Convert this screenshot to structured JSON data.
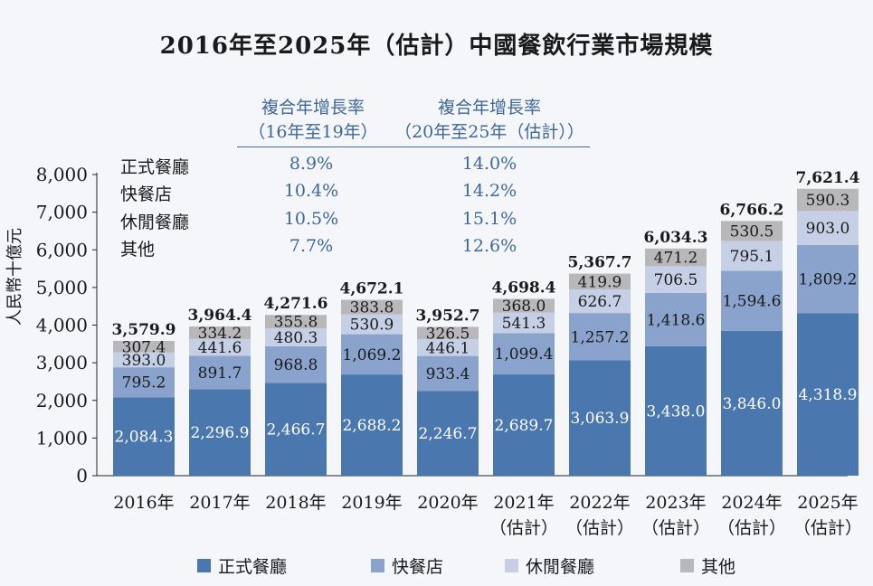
{
  "title": "2016年至2025年（估計）中國餐飲行業市場規模",
  "cagr_table": {
    "header1_line1": "複合年增長率",
    "header1_line2": "（16年至19年）",
    "header2_line1": "複合年增長率",
    "header2_line2": "（20年至25年（估計））",
    "rows": [
      {
        "name": "正式餐廳",
        "cagr1": "8.9%",
        "cagr2": "14.0%"
      },
      {
        "name": "快餐店",
        "cagr1": "10.4%",
        "cagr2": "14.2%"
      },
      {
        "name": "休閒餐廳",
        "cagr1": "10.5%",
        "cagr2": "15.1%"
      },
      {
        "name": "其他",
        "cagr1": "7.7%",
        "cagr2": "12.6%"
      }
    ]
  },
  "chart_data": {
    "type": "bar",
    "stacked": true,
    "ylabel": "人民幣十億元",
    "ylim": [
      0,
      8000
    ],
    "yticks": [
      "0",
      "1,000",
      "2,000",
      "3,000",
      "4,000",
      "5,000",
      "6,000",
      "7,000",
      "8,000"
    ],
    "categories": [
      [
        "2016年"
      ],
      [
        "2017年"
      ],
      [
        "2018年"
      ],
      [
        "2019年"
      ],
      [
        "2020年"
      ],
      [
        "2021年",
        "（估計）"
      ],
      [
        "2022年",
        "（估計）"
      ],
      [
        "2023年",
        "（估計）"
      ],
      [
        "2024年",
        "（估計）"
      ],
      [
        "2025年",
        "（估計）"
      ]
    ],
    "series": [
      {
        "name": "正式餐廳",
        "color": "#4a77ad",
        "label_color": "#ffffff",
        "values": [
          2084.3,
          2296.9,
          2466.7,
          2688.2,
          2246.7,
          2689.7,
          3063.9,
          3438.0,
          3846.0,
          4318.9
        ],
        "labels": [
          "2,084.3",
          "2,296.9",
          "2,466.7",
          "2,688.2",
          "2,246.7",
          "2,689.7",
          "3,063.9",
          "3,438.0",
          "3,846.0",
          "4,318.9"
        ]
      },
      {
        "name": "快餐店",
        "color": "#8aa3cd",
        "label_color": "#1a1a1a",
        "values": [
          795.2,
          891.7,
          968.8,
          1069.2,
          933.4,
          1099.4,
          1257.2,
          1418.6,
          1594.6,
          1809.2
        ],
        "labels": [
          "795.2",
          "891.7",
          "968.8",
          "1,069.2",
          "933.4",
          "1,099.4",
          "1,257.2",
          "1,418.6",
          "1,594.6",
          "1,809.2"
        ]
      },
      {
        "name": "休閒餐廳",
        "color": "#c5cfe6",
        "label_color": "#1a1a1a",
        "values": [
          393.0,
          441.6,
          480.3,
          530.9,
          446.1,
          541.3,
          626.7,
          706.5,
          795.1,
          903.0
        ],
        "labels": [
          "393.0",
          "441.6",
          "480.3",
          "530.9",
          "446.1",
          "541.3",
          "626.7",
          "706.5",
          "795.1",
          "903.0"
        ]
      },
      {
        "name": "其他",
        "color": "#b8b8bb",
        "label_color": "#1a1a1a",
        "values": [
          307.4,
          334.2,
          355.8,
          383.8,
          326.5,
          368.0,
          419.9,
          471.2,
          530.5,
          590.3
        ],
        "labels": [
          "307.4",
          "334.2",
          "355.8",
          "383.8",
          "326.5",
          "368.0",
          "419.9",
          "471.2",
          "530.5",
          "590.3"
        ]
      }
    ],
    "totals": [
      3579.9,
      3964.4,
      4271.6,
      4672.1,
      3952.7,
      4698.4,
      5367.7,
      6034.3,
      6766.2,
      7621.4
    ],
    "total_labels": [
      "3,579.9",
      "3,964.4",
      "4,271.6",
      "4,672.1",
      "3,952.7",
      "4,698.4",
      "5,367.7",
      "6,034.3",
      "6,766.2",
      "7,621.4"
    ],
    "legend_position": "bottom",
    "grid": false
  }
}
